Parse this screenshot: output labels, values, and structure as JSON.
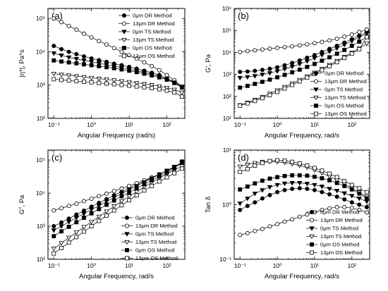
{
  "chart_data": [
    {
      "type": "scatter",
      "panel_label": "(a)",
      "xlabel": "Angular Frequency (rad/s)",
      "ylabel": "|η*|, Pa*s",
      "xscale": "log",
      "yscale": "log",
      "xlim": [
        0.07,
        300
      ],
      "ylim": [
        100,
        200000
      ],
      "xticks": [
        {
          "v": 0.1,
          "t": "10⁻¹"
        },
        {
          "v": 1,
          "t": "10⁰"
        },
        {
          "v": 10,
          "t": "10¹"
        },
        {
          "v": 100,
          "t": "10²"
        }
      ],
      "yticks": [
        {
          "v": 100,
          "t": "10²"
        },
        {
          "v": 1000,
          "t": "10³"
        },
        {
          "v": 10000,
          "t": "10⁴"
        },
        {
          "v": 100000,
          "t": "10⁵"
        }
      ],
      "legend_position": "top-right",
      "x": [
        0.1,
        0.159,
        0.251,
        0.398,
        0.631,
        1,
        1.58,
        2.51,
        3.98,
        6.31,
        10,
        15.8,
        25.1,
        39.8,
        63.1,
        100,
        158,
        251
      ],
      "series": [
        {
          "name": "0μm DR Method",
          "marker": "circle",
          "filled": true,
          "values": [
            15000,
            12000,
            10000,
            8500,
            7300,
            6300,
            5600,
            5000,
            4400,
            3950,
            3500,
            3100,
            2700,
            2350,
            2000,
            1600,
            1250,
            900
          ]
        },
        {
          "name": "13μm DR Method",
          "marker": "circle",
          "filled": false,
          "values": [
            100000,
            78000,
            60000,
            46000,
            35000,
            27000,
            21000,
            16500,
            13000,
            10000,
            7900,
            6200,
            4800,
            3700,
            2800,
            2000,
            1400,
            900
          ]
        },
        {
          "name": "0μm TS Method",
          "marker": "tri-down",
          "filled": true,
          "values": [
            9000,
            7800,
            6800,
            6100,
            5500,
            5000,
            4500,
            4100,
            3700,
            3350,
            3000,
            2700,
            2400,
            2100,
            1800,
            1500,
            1200,
            850
          ]
        },
        {
          "name": "13μm TS Method",
          "marker": "tri-down",
          "filled": false,
          "values": [
            2200,
            2050,
            1950,
            1850,
            1750,
            1650,
            1560,
            1480,
            1400,
            1320,
            1240,
            1160,
            1080,
            1000,
            920,
            830,
            730,
            600
          ]
        },
        {
          "name": "0μm OS Method",
          "marker": "square",
          "filled": true,
          "values": [
            5500,
            5100,
            4800,
            4500,
            4200,
            3950,
            3700,
            3450,
            3200,
            2950,
            2700,
            2450,
            2200,
            1950,
            1700,
            1450,
            1150,
            850
          ]
        },
        {
          "name": "13μm OS Method",
          "marker": "square",
          "filled": false,
          "values": [
            1500,
            1430,
            1370,
            1310,
            1260,
            1210,
            1160,
            1110,
            1060,
            1010,
            960,
            910,
            860,
            810,
            750,
            680,
            600,
            450
          ]
        }
      ]
    },
    {
      "type": "scatter",
      "panel_label": "(b)",
      "xlabel": "Angular Frequency, rad/s",
      "ylabel": "G', Pa",
      "xscale": "log",
      "yscale": "log",
      "xlim": [
        0.07,
        300
      ],
      "ylim": [
        10,
        1000000
      ],
      "xticks": [
        {
          "v": 0.1,
          "t": "10⁻¹"
        },
        {
          "v": 1,
          "t": "10⁰"
        },
        {
          "v": 10,
          "t": "10¹"
        },
        {
          "v": 100,
          "t": "10²"
        }
      ],
      "yticks": [
        {
          "v": 10,
          "t": "10¹"
        },
        {
          "v": 100,
          "t": "10²"
        },
        {
          "v": 1000,
          "t": "10³"
        },
        {
          "v": 10000,
          "t": "10⁴"
        },
        {
          "v": 100000,
          "t": "10⁵"
        },
        {
          "v": 1000000,
          "t": "10⁶"
        }
      ],
      "legend_position": "bottom-right",
      "x": [
        0.1,
        0.159,
        0.251,
        0.398,
        0.631,
        1,
        1.58,
        2.51,
        3.98,
        6.31,
        10,
        15.8,
        25.1,
        39.8,
        63.1,
        100,
        158,
        251
      ],
      "series": [
        {
          "name": "0μm DR Method",
          "marker": "circle",
          "filled": true,
          "values": [
            1300,
            1350,
            1450,
            1600,
            1800,
            2100,
            2600,
            3300,
            4300,
            5700,
            7600,
            10500,
            14500,
            20000,
            28000,
            40000,
            58000,
            85000
          ]
        },
        {
          "name": "13μm DR Method",
          "marker": "circle",
          "filled": false,
          "values": [
            10500,
            11500,
            12500,
            13500,
            14800,
            16000,
            17500,
            19000,
            21000,
            23500,
            26500,
            30000,
            35000,
            42000,
            52000,
            65000,
            85000,
            110000
          ]
        },
        {
          "name": "0μm TS Method",
          "marker": "tri-down",
          "filled": true,
          "values": [
            700,
            760,
            850,
            980,
            1150,
            1400,
            1750,
            2250,
            2950,
            4000,
            5500,
            7700,
            11000,
            15500,
            22500,
            33000,
            49000,
            72000
          ]
        },
        {
          "name": "13μm TS Method",
          "marker": "tri-down",
          "filled": false,
          "values": [
            40,
            52,
            70,
            95,
            135,
            190,
            270,
            390,
            560,
            820,
            1200,
            1800,
            2700,
            4100,
            6300,
            9800,
            15500,
            25000
          ]
        },
        {
          "name": "0μm OS Method",
          "marker": "square",
          "filled": true,
          "values": [
            250,
            300,
            370,
            460,
            580,
            740,
            950,
            1250,
            1650,
            2200,
            3000,
            4200,
            6000,
            8700,
            13000,
            20000,
            31000,
            50000
          ]
        },
        {
          "name": "13μm OS Method",
          "marker": "square",
          "filled": false,
          "values": [
            38,
            48,
            62,
            83,
            115,
            160,
            230,
            330,
            480,
            710,
            1050,
            1550,
            2350,
            3600,
            5600,
            8800,
            14000,
            50000
          ]
        }
      ]
    },
    {
      "type": "scatter",
      "panel_label": "(c)",
      "xlabel": "Angular Frequency, rad/s",
      "ylabel": "G\", Pa",
      "xscale": "log",
      "yscale": "log",
      "xlim": [
        0.07,
        300
      ],
      "ylim": [
        100,
        200000
      ],
      "xticks": [
        {
          "v": 0.1,
          "t": "10⁻¹"
        },
        {
          "v": 1,
          "t": "10⁰"
        },
        {
          "v": 10,
          "t": "10¹"
        },
        {
          "v": 100,
          "t": "10²"
        }
      ],
      "yticks": [
        {
          "v": 100,
          "t": "10²"
        },
        {
          "v": 1000,
          "t": "10³"
        },
        {
          "v": 10000,
          "t": "10⁴"
        },
        {
          "v": 100000,
          "t": "10⁵"
        }
      ],
      "legend_position": "bottom-right",
      "x": [
        0.1,
        0.159,
        0.251,
        0.398,
        0.631,
        1,
        1.58,
        2.51,
        3.98,
        6.31,
        10,
        15.8,
        25.1,
        39.8,
        63.1,
        100,
        158,
        251
      ],
      "series": [
        {
          "name": "0μm DR Method",
          "marker": "circle",
          "filled": true,
          "values": [
            1000,
            1300,
            1700,
            2250,
            2950,
            3900,
            5100,
            6600,
            8600,
            11000,
            14000,
            18000,
            23000,
            29000,
            37000,
            47000,
            60000,
            80000
          ]
        },
        {
          "name": "13μm DR Method",
          "marker": "circle",
          "filled": false,
          "values": [
            3000,
            3500,
            4100,
            4800,
            5700,
            6800,
            8100,
            9600,
            11500,
            13800,
            16500,
            20000,
            24500,
            30000,
            37000,
            47000,
            62000,
            85000
          ]
        },
        {
          "name": "0μm TS Method",
          "marker": "tri-down",
          "filled": true,
          "values": [
            750,
            1000,
            1350,
            1800,
            2400,
            3200,
            4200,
            5600,
            7400,
            9700,
            12700,
            16500,
            21500,
            28000,
            37000,
            48000,
            63000,
            85000
          ]
        },
        {
          "name": "13μm TS Method",
          "marker": "tri-down",
          "filled": false,
          "values": [
            210,
            310,
            450,
            650,
            950,
            1350,
            1950,
            2800,
            4000,
            5700,
            8000,
            11000,
            15500,
            21000,
            28500,
            38000,
            50000,
            65000
          ]
        },
        {
          "name": "0μm OS Method",
          "marker": "square",
          "filled": true,
          "values": [
            500,
            700,
            960,
            1320,
            1800,
            2450,
            3300,
            4450,
            6000,
            8000,
            10600,
            14000,
            18500,
            24500,
            32000,
            42000,
            56000,
            90000
          ]
        },
        {
          "name": "13μm OS Method",
          "marker": "square",
          "filled": false,
          "values": [
            150,
            220,
            320,
            470,
            690,
            1000,
            1450,
            2100,
            3000,
            4300,
            6100,
            8600,
            12000,
            16500,
            22500,
            30000,
            40000,
            55000
          ]
        }
      ]
    },
    {
      "type": "scatter",
      "panel_label": "(d)",
      "xlabel": "Angular Frequency, rad/s",
      "ylabel": "Tan δ",
      "xscale": "log",
      "yscale": "log",
      "xlim": [
        0.07,
        300
      ],
      "ylim": [
        0.1,
        10
      ],
      "xticks": [
        {
          "v": 0.1,
          "t": "10⁻¹"
        },
        {
          "v": 1,
          "t": "10⁰"
        },
        {
          "v": 10,
          "t": "10¹"
        },
        {
          "v": 100,
          "t": "10²"
        }
      ],
      "yticks": [
        {
          "v": 0.1,
          "t": "10⁻¹"
        },
        {
          "v": 1,
          "t": "10⁰"
        },
        {
          "v": 10,
          "t": "10¹"
        }
      ],
      "legend_position": "bottom-right",
      "x": [
        0.1,
        0.159,
        0.251,
        0.398,
        0.631,
        1,
        1.58,
        2.51,
        3.98,
        6.31,
        10,
        15.8,
        25.1,
        39.8,
        63.1,
        100,
        158,
        251
      ],
      "series": [
        {
          "name": "0μm DR Method",
          "marker": "circle",
          "filled": true,
          "values": [
            0.8,
            0.95,
            1.1,
            1.3,
            1.5,
            1.7,
            1.85,
            1.95,
            2.0,
            1.95,
            1.85,
            1.7,
            1.55,
            1.4,
            1.25,
            1.1,
            1.0,
            0.9
          ]
        },
        {
          "name": "13μm DR Method",
          "marker": "circle",
          "filled": false,
          "values": [
            0.28,
            0.3,
            0.33,
            0.36,
            0.4,
            0.44,
            0.49,
            0.54,
            0.6,
            0.66,
            0.73,
            0.8,
            0.86,
            0.9,
            0.9,
            0.87,
            0.8,
            0.72
          ]
        },
        {
          "name": "0μm TS Method",
          "marker": "tri-down",
          "filled": true,
          "values": [
            1.05,
            1.3,
            1.6,
            1.85,
            2.1,
            2.3,
            2.45,
            2.5,
            2.5,
            2.42,
            2.3,
            2.15,
            1.95,
            1.8,
            1.62,
            1.45,
            1.3,
            1.15
          ]
        },
        {
          "name": "13μm TS Method",
          "marker": "tri-down",
          "filled": false,
          "values": [
            5.0,
            5.4,
            5.8,
            6.1,
            6.2,
            6.1,
            5.9,
            5.6,
            5.2,
            4.8,
            4.3,
            3.8,
            3.3,
            2.8,
            2.4,
            2.0,
            1.7,
            1.4
          ]
        },
        {
          "name": "0μm OS Method",
          "marker": "square",
          "filled": true,
          "values": [
            1.9,
            2.15,
            2.45,
            2.75,
            3.0,
            3.2,
            3.35,
            3.45,
            3.45,
            3.4,
            3.25,
            3.05,
            2.8,
            2.5,
            2.2,
            1.9,
            1.6,
            1.3
          ]
        },
        {
          "name": "13μm OS Method",
          "marker": "square",
          "filled": false,
          "values": [
            4.0,
            4.5,
            5.2,
            5.8,
            6.3,
            6.5,
            6.4,
            6.1,
            5.7,
            5.2,
            4.7,
            4.2,
            3.7,
            3.2,
            2.7,
            2.3,
            2.0,
            1.7
          ]
        }
      ]
    }
  ]
}
